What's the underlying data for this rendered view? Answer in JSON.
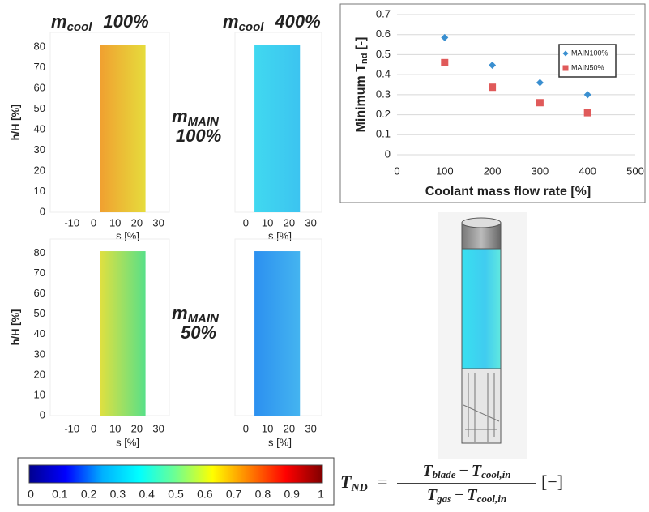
{
  "chart_data": [
    {
      "type": "contour",
      "xlabel": "s [%]",
      "ylabel": "h/H [%]",
      "xlim": [
        -20,
        35
      ],
      "ylim": [
        0,
        87
      ],
      "xticks": [
        -10,
        0,
        10,
        20,
        30
      ],
      "yticks": [
        0,
        10,
        20,
        30,
        40,
        50,
        60,
        70,
        80
      ],
      "blade_s": [
        3,
        24
      ],
      "blade_h": [
        0,
        81
      ],
      "colors": [
        "#f0a030",
        "#e6dc3c"
      ]
    },
    {
      "type": "contour",
      "xlabel": "s [%]",
      "xlim": [
        -5,
        35
      ],
      "ylim": [
        0,
        87
      ],
      "xticks": [
        0,
        10,
        20,
        30
      ],
      "blade_s": [
        4,
        25
      ],
      "blade_h": [
        0,
        81
      ],
      "colors": [
        "#40d8f0",
        "#3cc4f0"
      ]
    },
    {
      "type": "contour",
      "xlabel": "s [%]",
      "ylabel": "h/H [%]",
      "xlim": [
        -20,
        35
      ],
      "ylim": [
        0,
        87
      ],
      "xticks": [
        -10,
        0,
        10,
        20,
        30
      ],
      "yticks": [
        0,
        10,
        20,
        30,
        40,
        50,
        60,
        70,
        80
      ],
      "blade_s": [
        3,
        24
      ],
      "blade_h": [
        0,
        81
      ],
      "colors": [
        "#e0e040",
        "#58e088"
      ]
    },
    {
      "type": "contour",
      "xlabel": "s [%]",
      "xlim": [
        -5,
        35
      ],
      "ylim": [
        0,
        87
      ],
      "xticks": [
        0,
        10,
        20,
        30
      ],
      "blade_s": [
        4,
        25
      ],
      "blade_h": [
        0,
        81
      ],
      "colors": [
        "#2c90f0",
        "#44b4f0"
      ]
    },
    {
      "type": "scatter",
      "ylabel": "Minimum T",
      "ylabel_sub": "nd",
      "ylabel_unit": "[-]",
      "xlabel": "Coolant mass flow rate [%]",
      "x": [
        100,
        200,
        300,
        400
      ],
      "xlim": [
        0,
        500
      ],
      "xticks": [
        0,
        100,
        200,
        300,
        400,
        500
      ],
      "ylim": [
        0,
        0.7
      ],
      "yticks": [
        0,
        0.1,
        0.2,
        0.3,
        0.4,
        0.5,
        0.6,
        0.7
      ],
      "grid": true,
      "legend": "upper right",
      "series": [
        {
          "name": "MAIN100%",
          "color": "#3a8fd0",
          "marker": "diamond",
          "values": [
            0.585,
            0.447,
            0.36,
            0.3
          ]
        },
        {
          "name": "MAIN50%",
          "color": "#e05a5a",
          "marker": "square",
          "values": [
            0.46,
            0.337,
            0.26,
            0.21
          ]
        }
      ]
    },
    {
      "type": "colorbar",
      "colormap": "jet",
      "xlim": [
        0,
        1
      ],
      "xticks": [
        0,
        0.1,
        0.2,
        0.3,
        0.4,
        0.5,
        0.6,
        0.7,
        0.8,
        0.9,
        1
      ]
    }
  ],
  "labels": [
    {
      "base": "m",
      "sub": "cool",
      "text": "100%"
    },
    {
      "base": "m",
      "sub": "cool",
      "text": "400%"
    },
    {
      "base": "m",
      "sub": "MAIN",
      "text": "100%"
    },
    {
      "base": "m",
      "sub": "MAIN",
      "text": "50%"
    }
  ],
  "formula": {
    "lhs": "T",
    "lhs_sub": "ND",
    "eq": "=",
    "num": "T",
    "num_sub": "blade",
    "num_op": "−",
    "num2": "T",
    "num2_sub": "cool,in",
    "den": "T",
    "den_sub": "gas",
    "den_op": "−",
    "den2": "T",
    "den2_sub": "cool,in",
    "unit": "[−]"
  }
}
